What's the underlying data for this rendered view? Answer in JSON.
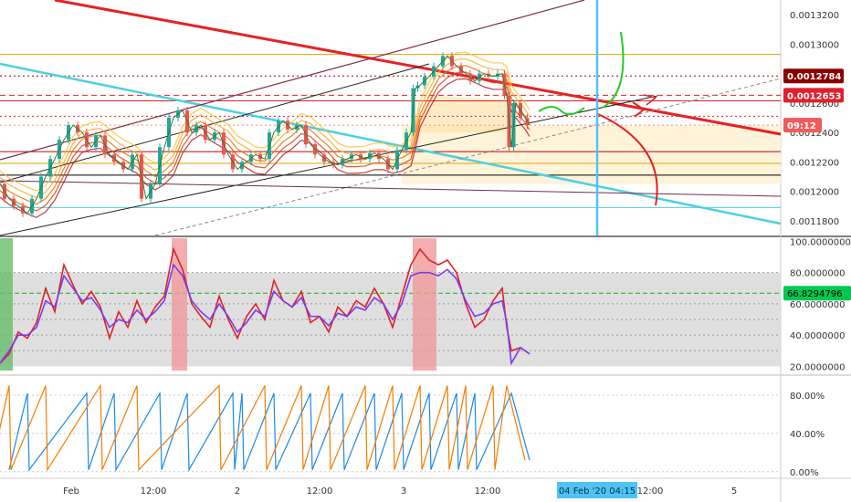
{
  "chart_data": [
    {
      "type": "line",
      "pane": "price",
      "y_ticks": [
        "0.0013200",
        "0.0013000",
        "0.0012800",
        "0.0012600",
        "0.0012400",
        "0.0012200",
        "0.0012000",
        "0.0011800"
      ],
      "ylim": [
        0.00117,
        0.00133
      ],
      "price_badges": [
        {
          "label": "0.0012784",
          "color": "#8b0000"
        },
        {
          "label": "0.0012653",
          "color": "#e0202a"
        },
        {
          "label": "09:12",
          "color": "#f05a5a"
        }
      ],
      "horizontal_levels": [
        {
          "value": 0.001293,
          "color": "#e0a000",
          "style": "solid"
        },
        {
          "value": 0.0012784,
          "color": "#b00000",
          "style": "dotted"
        },
        {
          "value": 0.0012653,
          "color": "#e0202a",
          "style": "dashed"
        },
        {
          "value": 0.0012615,
          "color": "#e0202a",
          "style": "solid"
        },
        {
          "value": 0.001251,
          "color": "#e0202a",
          "style": "dotted"
        },
        {
          "value": 0.001245,
          "color": "#ff8a80",
          "style": "dotted"
        },
        {
          "value": 0.001227,
          "color": "#c00000",
          "style": "solid"
        },
        {
          "value": 0.001219,
          "color": "#e0a000",
          "style": "solid"
        },
        {
          "value": 0.001211,
          "color": "#000000",
          "style": "solid"
        },
        {
          "value": 0.001189,
          "color": "#4dd0e1",
          "style": "solid"
        }
      ],
      "price_series": [
        [
          0,
          0.001205
        ],
        [
          10,
          0.001195
        ],
        [
          20,
          0.00119
        ],
        [
          30,
          0.001185
        ],
        [
          40,
          0.001195
        ],
        [
          50,
          0.00121
        ],
        [
          60,
          0.001222
        ],
        [
          70,
          0.001235
        ],
        [
          80,
          0.001245
        ],
        [
          90,
          0.00124
        ],
        [
          100,
          0.00123
        ],
        [
          110,
          0.001238
        ],
        [
          120,
          0.001225
        ],
        [
          130,
          0.00122
        ],
        [
          140,
          0.001215
        ],
        [
          150,
          0.001225
        ],
        [
          160,
          0.001195
        ],
        [
          170,
          0.001205
        ],
        [
          180,
          0.00123
        ],
        [
          190,
          0.00125
        ],
        [
          200,
          0.001255
        ],
        [
          210,
          0.00124
        ],
        [
          220,
          0.001245
        ],
        [
          230,
          0.001235
        ],
        [
          240,
          0.00124
        ],
        [
          250,
          0.001225
        ],
        [
          260,
          0.001215
        ],
        [
          270,
          0.00122
        ],
        [
          280,
          0.001225
        ],
        [
          290,
          0.001222
        ],
        [
          300,
          0.00124
        ],
        [
          310,
          0.001248
        ],
        [
          320,
          0.001242
        ],
        [
          330,
          0.001245
        ],
        [
          340,
          0.001232
        ],
        [
          350,
          0.001225
        ],
        [
          360,
          0.00122
        ],
        [
          370,
          0.001218
        ],
        [
          380,
          0.001222
        ],
        [
          390,
          0.001225
        ],
        [
          400,
          0.001222
        ],
        [
          410,
          0.001226
        ],
        [
          420,
          0.001222
        ],
        [
          430,
          0.001215
        ],
        [
          440,
          0.001228
        ],
        [
          450,
          0.00124
        ],
        [
          455,
          0.00127
        ],
        [
          460,
          0.001272
        ],
        [
          470,
          0.001278
        ],
        [
          480,
          0.001285
        ],
        [
          490,
          0.001292
        ],
        [
          500,
          0.001285
        ],
        [
          510,
          0.00128
        ],
        [
          520,
          0.001275
        ],
        [
          530,
          0.00128
        ],
        [
          540,
          0.001278
        ],
        [
          550,
          0.00128
        ],
        [
          555,
          0.001265
        ],
        [
          560,
          0.00123
        ],
        [
          565,
          0.00126
        ],
        [
          575,
          0.00125
        ],
        [
          580,
          0.001245
        ]
      ],
      "current_price": 0.001245,
      "x_range": [
        0,
        855
      ]
    },
    {
      "type": "line",
      "pane": "oscillator",
      "y_ticks": [
        "100.0000000",
        "80.0000000",
        "60.0000000",
        "40.0000000",
        "20.0000000"
      ],
      "ylim": [
        15,
        102
      ],
      "value_badge": {
        "label": "66.8294796",
        "color": "#00c853"
      },
      "band": [
        20,
        80
      ],
      "series": [
        {
          "color": "#e0202a",
          "values": [
            [
              0,
              22
            ],
            [
              10,
              28
            ],
            [
              20,
              42
            ],
            [
              30,
              38
            ],
            [
              40,
              48
            ],
            [
              50,
              70
            ],
            [
              60,
              55
            ],
            [
              70,
              85
            ],
            [
              80,
              72
            ],
            [
              90,
              60
            ],
            [
              100,
              68
            ],
            [
              110,
              58
            ],
            [
              120,
              38
            ],
            [
              130,
              55
            ],
            [
              140,
              45
            ],
            [
              150,
              62
            ],
            [
              160,
              48
            ],
            [
              170,
              58
            ],
            [
              180,
              65
            ],
            [
              190,
              95
            ],
            [
              200,
              82
            ],
            [
              210,
              60
            ],
            [
              220,
              52
            ],
            [
              230,
              45
            ],
            [
              240,
              65
            ],
            [
              250,
              50
            ],
            [
              260,
              38
            ],
            [
              270,
              52
            ],
            [
              280,
              60
            ],
            [
              290,
              50
            ],
            [
              300,
              75
            ],
            [
              310,
              62
            ],
            [
              320,
              58
            ],
            [
              330,
              68
            ],
            [
              340,
              48
            ],
            [
              350,
              52
            ],
            [
              360,
              42
            ],
            [
              370,
              58
            ],
            [
              380,
              52
            ],
            [
              390,
              62
            ],
            [
              400,
              58
            ],
            [
              410,
              70
            ],
            [
              420,
              60
            ],
            [
              430,
              45
            ],
            [
              440,
              65
            ],
            [
              450,
              85
            ],
            [
              460,
              95
            ],
            [
              470,
              88
            ],
            [
              480,
              85
            ],
            [
              490,
              88
            ],
            [
              500,
              80
            ],
            [
              510,
              60
            ],
            [
              520,
              45
            ],
            [
              530,
              50
            ],
            [
              540,
              62
            ],
            [
              550,
              70
            ],
            [
              555,
              45
            ],
            [
              560,
              30
            ],
            [
              570,
              32
            ],
            [
              580,
              28
            ]
          ]
        },
        {
          "color": "#7c3aed",
          "values": [
            [
              0,
              22
            ],
            [
              10,
              30
            ],
            [
              20,
              40
            ],
            [
              30,
              40
            ],
            [
              40,
              45
            ],
            [
              50,
              62
            ],
            [
              60,
              58
            ],
            [
              70,
              78
            ],
            [
              80,
              70
            ],
            [
              90,
              62
            ],
            [
              100,
              64
            ],
            [
              110,
              56
            ],
            [
              120,
              45
            ],
            [
              130,
              50
            ],
            [
              140,
              48
            ],
            [
              150,
              56
            ],
            [
              160,
              50
            ],
            [
              170,
              55
            ],
            [
              180,
              62
            ],
            [
              190,
              85
            ],
            [
              200,
              78
            ],
            [
              210,
              62
            ],
            [
              220,
              55
            ],
            [
              230,
              50
            ],
            [
              240,
              60
            ],
            [
              250,
              52
            ],
            [
              260,
              42
            ],
            [
              270,
              48
            ],
            [
              280,
              56
            ],
            [
              290,
              52
            ],
            [
              300,
              68
            ],
            [
              310,
              62
            ],
            [
              320,
              58
            ],
            [
              330,
              64
            ],
            [
              340,
              52
            ],
            [
              350,
              52
            ],
            [
              360,
              46
            ],
            [
              370,
              54
            ],
            [
              380,
              52
            ],
            [
              390,
              58
            ],
            [
              400,
              56
            ],
            [
              410,
              64
            ],
            [
              420,
              60
            ],
            [
              430,
              50
            ],
            [
              440,
              60
            ],
            [
              450,
              78
            ],
            [
              460,
              80
            ],
            [
              470,
              80
            ],
            [
              480,
              78
            ],
            [
              490,
              82
            ],
            [
              500,
              76
            ],
            [
              510,
              62
            ],
            [
              520,
              52
            ],
            [
              530,
              54
            ],
            [
              540,
              60
            ],
            [
              550,
              62
            ],
            [
              555,
              48
            ],
            [
              560,
              22
            ],
            [
              570,
              32
            ],
            [
              580,
              28
            ]
          ]
        }
      ],
      "x_range": [
        0,
        855
      ]
    },
    {
      "type": "line",
      "pane": "cycle",
      "y_ticks": [
        "80.00%",
        "40.00%",
        "0.00%"
      ],
      "ylim": [
        -5,
        100
      ],
      "series": [
        {
          "color": "#1e88e5",
          "peaks_x": [
            30,
            95,
            125,
            175,
            205,
            255,
            265,
            300,
            340,
            375,
            410,
            440,
            470,
            500,
            520,
            560
          ],
          "peak_value": 82,
          "trough_value": 2
        },
        {
          "color": "#f57c00",
          "peaks_x": [
            10,
            50,
            110,
            150,
            240,
            290,
            330,
            360,
            400,
            430,
            460,
            490,
            510,
            540,
            555
          ],
          "peak_value": 90,
          "trough_value": 2
        }
      ],
      "x_range": [
        0,
        855
      ]
    }
  ],
  "x_axis": {
    "tick_labels": [
      {
        "label": "Feb",
        "x": 78
      },
      {
        "label": "12:00",
        "x": 168
      },
      {
        "label": "2",
        "x": 260
      },
      {
        "label": "12:00",
        "x": 350
      },
      {
        "label": "3",
        "x": 442
      },
      {
        "label": "12:00",
        "x": 534
      },
      {
        "label": "12:00",
        "x": 712
      },
      {
        "label": "5",
        "x": 804
      }
    ],
    "cursor_label": "04 Feb '20   04:15",
    "cursor_color": "#4fc3f7"
  }
}
